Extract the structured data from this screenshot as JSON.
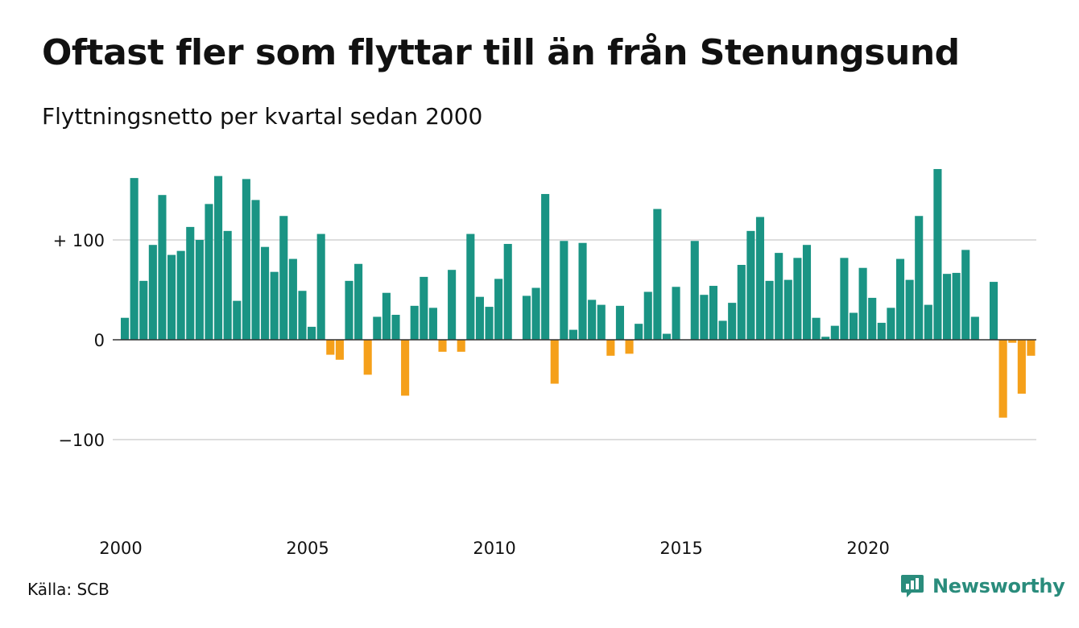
{
  "title": "Oftast fler som flyttar till än från Stenungsund",
  "subtitle": "Flyttningsnetto per kvartal sedan 2000",
  "source": "Källa: SCB",
  "brand": {
    "name": "Newsworthy",
    "icon": "newsworthy-logo-icon"
  },
  "colors": {
    "positive": "#1a9484",
    "negative": "#f5a01a",
    "grid": "#dddddd",
    "axis": "#333333"
  },
  "chart_data": {
    "type": "bar",
    "title": "Oftast fler som flyttar till än från Stenungsund",
    "subtitle": "Flyttningsnetto per kvartal sedan 2000",
    "ylim": [
      -160,
      170
    ],
    "yticks": [
      {
        "value": 100,
        "label": "+ 100"
      },
      {
        "value": 0,
        "label": "0"
      },
      {
        "value": -100,
        "label": "−100"
      }
    ],
    "xticks": [
      {
        "year": 2000,
        "label": "2000"
      },
      {
        "year": 2005,
        "label": "2005"
      },
      {
        "year": 2010,
        "label": "2010"
      },
      {
        "year": 2015,
        "label": "2015"
      },
      {
        "year": 2020,
        "label": "2020"
      }
    ],
    "grid": true,
    "start": "2000 Q1",
    "frequency": "quarterly",
    "values": [
      22,
      162,
      59,
      95,
      145,
      85,
      89,
      113,
      100,
      136,
      164,
      109,
      39,
      161,
      140,
      93,
      68,
      124,
      81,
      49,
      13,
      106,
      -15,
      -20,
      59,
      76,
      -35,
      23,
      47,
      25,
      -56,
      34,
      63,
      32,
      -12,
      70,
      -12,
      106,
      43,
      33,
      61,
      96,
      0,
      44,
      52,
      146,
      -44,
      99,
      10,
      97,
      40,
      35,
      -16,
      34,
      -14,
      16,
      48,
      131,
      6,
      53,
      0,
      99,
      45,
      54,
      19,
      37,
      75,
      109,
      123,
      59,
      87,
      60,
      82,
      95,
      22,
      3,
      14,
      82,
      27,
      72,
      42,
      17,
      32,
      81,
      60,
      124,
      35,
      171,
      66,
      67,
      90,
      23,
      0,
      58,
      -78,
      -3,
      -54,
      -16
    ]
  }
}
